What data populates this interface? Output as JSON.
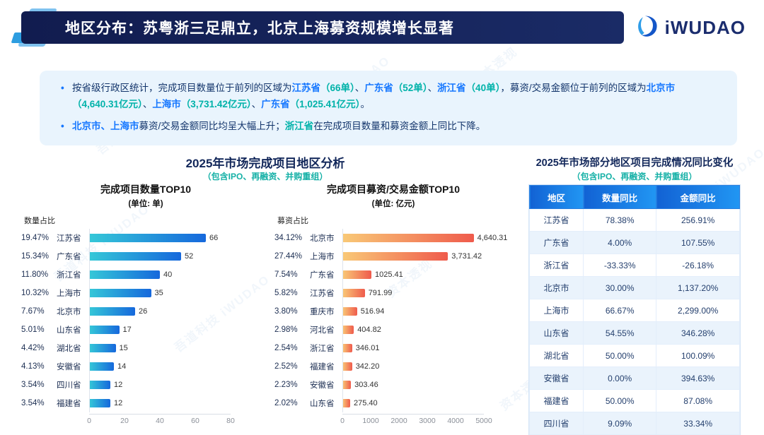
{
  "header": {
    "title": "地区分布：苏粤浙三足鼎立，北京上海募资规模增长显著"
  },
  "brand": {
    "name": "iWUDAO"
  },
  "watermark": {
    "text": "吾道科技 iWUDAO",
    "text2": "资本透视"
  },
  "summary": {
    "bullets": [
      {
        "segments": [
          {
            "t": "按省级行政区统计，完成项目数量位于前列的区域为",
            "c": "base"
          },
          {
            "t": "江苏省",
            "c": "blue"
          },
          {
            "t": "（66单）",
            "c": "teal"
          },
          {
            "t": "、",
            "c": "base"
          },
          {
            "t": "广东省",
            "c": "blue"
          },
          {
            "t": "（52单）",
            "c": "teal"
          },
          {
            "t": "、",
            "c": "base"
          },
          {
            "t": "浙江省",
            "c": "blue"
          },
          {
            "t": "（40单）",
            "c": "teal"
          },
          {
            "t": "，募资/交易金额位于前列的区域为",
            "c": "base"
          },
          {
            "t": "北京市",
            "c": "blue"
          },
          {
            "t": "（4,640.31亿元）",
            "c": "teal"
          },
          {
            "t": "、",
            "c": "base"
          },
          {
            "t": "上海市",
            "c": "blue"
          },
          {
            "t": "（3,731.42亿元）",
            "c": "teal"
          },
          {
            "t": "、",
            "c": "base"
          },
          {
            "t": "广东省",
            "c": "blue"
          },
          {
            "t": "（1,025.41亿元）",
            "c": "teal"
          },
          {
            "t": "。",
            "c": "base"
          }
        ]
      },
      {
        "segments": [
          {
            "t": "北京市、上海市",
            "c": "blue"
          },
          {
            "t": "募资/交易金额同比均呈大幅上升；",
            "c": "base"
          },
          {
            "t": "浙江省",
            "c": "teal"
          },
          {
            "t": "在完成项目数量和募资金额上同比下降。",
            "c": "base"
          }
        ]
      }
    ]
  },
  "analysis": {
    "title": "2025年市场完成项目地区分析",
    "subtitle": "（包含IPO、再融资、并购重组）"
  },
  "chart_data": [
    {
      "type": "bar",
      "title": "完成项目数量TOP10",
      "subtitle": "(单位: 单)",
      "value_label": "数量占比",
      "categories": [
        "江苏省",
        "广东省",
        "浙江省",
        "上海市",
        "北京市",
        "山东省",
        "湖北省",
        "安徽省",
        "四川省",
        "福建省"
      ],
      "percents": [
        "19.47%",
        "15.34%",
        "11.80%",
        "10.32%",
        "7.67%",
        "5.01%",
        "4.42%",
        "4.13%",
        "3.54%",
        "3.54%"
      ],
      "values": [
        66,
        52,
        40,
        35,
        26,
        17,
        15,
        14,
        12,
        12
      ],
      "value_labels": [
        "66",
        "52",
        "40",
        "35",
        "26",
        "17",
        "15",
        "14",
        "12",
        "12"
      ],
      "xlim": [
        0,
        80
      ],
      "xticks": [
        0,
        20,
        40,
        60,
        80
      ],
      "bar_color_start": "#35c8d8",
      "bar_color_end": "#1668dc"
    },
    {
      "type": "bar",
      "title": "完成项目募资/交易金额TOP10",
      "subtitle": "(单位: 亿元)",
      "value_label": "募资占比",
      "categories": [
        "北京市",
        "上海市",
        "广东省",
        "江苏省",
        "重庆市",
        "河北省",
        "浙江省",
        "福建省",
        "安徽省",
        "山东省"
      ],
      "percents": [
        "34.12%",
        "27.44%",
        "7.54%",
        "5.82%",
        "3.80%",
        "2.98%",
        "2.54%",
        "2.52%",
        "2.23%",
        "2.02%"
      ],
      "values": [
        4640.31,
        3731.42,
        1025.41,
        791.99,
        516.94,
        404.82,
        346.01,
        342.2,
        303.46,
        275.4
      ],
      "value_labels": [
        "4,640.31",
        "3,731.42",
        "1025.41",
        "791.99",
        "516.94",
        "404.82",
        "346.01",
        "342.20",
        "303.46",
        "275.40"
      ],
      "xlim": [
        0,
        5000
      ],
      "xticks": [
        0,
        1000,
        2000,
        3000,
        4000,
        5000
      ],
      "bar_color_start": "#f9c977",
      "bar_color_end": "#ef5b4c"
    },
    {
      "type": "table",
      "title": "2025年市场部分地区项目完成情况同比变化",
      "subtitle": "（包含IPO、再融资、并购重组）",
      "columns": [
        "地区",
        "数量同比",
        "金额同比"
      ],
      "rows": [
        [
          "江苏省",
          "78.38%",
          "256.91%"
        ],
        [
          "广东省",
          "4.00%",
          "107.55%"
        ],
        [
          "浙江省",
          "-33.33%",
          "-26.18%"
        ],
        [
          "北京市",
          "30.00%",
          "1,137.20%"
        ],
        [
          "上海市",
          "66.67%",
          "2,299.00%"
        ],
        [
          "山东省",
          "54.55%",
          "346.28%"
        ],
        [
          "湖北省",
          "50.00%",
          "100.09%"
        ],
        [
          "安徽省",
          "0.00%",
          "394.63%"
        ],
        [
          "福建省",
          "50.00%",
          "87.08%"
        ],
        [
          "四川省",
          "9.09%",
          "33.34%"
        ]
      ]
    }
  ]
}
